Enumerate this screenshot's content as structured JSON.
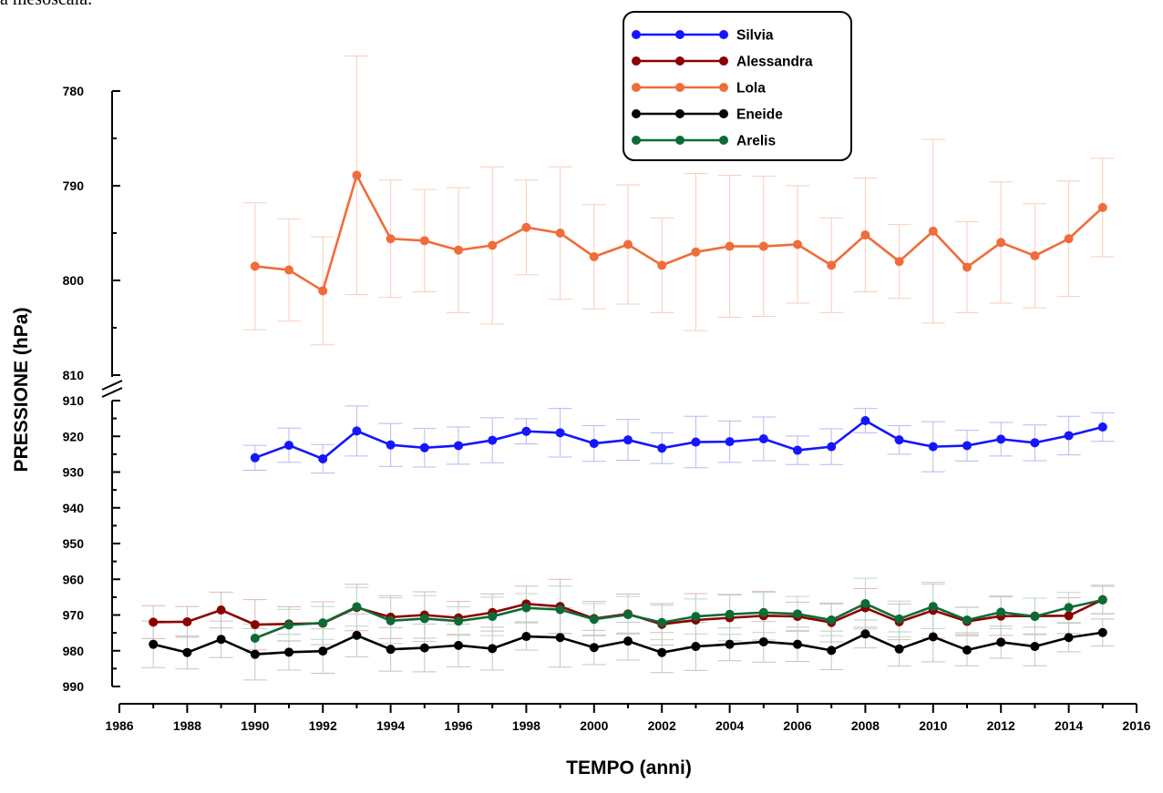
{
  "fragment_text": "a mesoscala.",
  "chart_data": {
    "type": "line",
    "title": "",
    "xlabel": "TEMPO (anni)",
    "ylabel": "PRESSIONE (hPa)",
    "xlim": [
      1986,
      2016
    ],
    "x_ticks": [
      "1986",
      "1988",
      "1990",
      "1992",
      "1994",
      "1996",
      "1998",
      "2000",
      "2002",
      "2004",
      "2006",
      "2008",
      "2010",
      "2012",
      "2014",
      "2016"
    ],
    "y_axis_break": true,
    "y_upper_segment": {
      "range": [
        780,
        810
      ],
      "inverted": true,
      "ticks": [
        "780",
        "790",
        "800",
        "810"
      ]
    },
    "y_lower_segment": {
      "range": [
        910,
        990
      ],
      "inverted": true,
      "ticks": [
        "910",
        "920",
        "930",
        "940",
        "950",
        "960",
        "970",
        "980",
        "990"
      ]
    },
    "legend_position": "top-center",
    "error_bars": true,
    "series": [
      {
        "name": "Silvia",
        "color": "#1515ff",
        "errcolor": "#b8b8f0",
        "segment": "lower",
        "x": [
          1990,
          1991,
          1992,
          1993,
          1994,
          1995,
          1996,
          1997,
          1998,
          1999,
          2000,
          2001,
          2002,
          2003,
          2004,
          2005,
          2006,
          2007,
          2008,
          2009,
          2010,
          2011,
          2012,
          2013,
          2014,
          2015
        ],
        "values": [
          926.0,
          922.5,
          926.3,
          918.5,
          922.4,
          923.2,
          922.6,
          921.1,
          918.6,
          919.0,
          922.0,
          921.0,
          923.3,
          921.6,
          921.5,
          920.7,
          923.9,
          922.9,
          915.6,
          921.0,
          922.9,
          922.6,
          920.8,
          921.8,
          919.8,
          917.4
        ],
        "err": [
          3.5,
          4.8,
          4.0,
          7.0,
          6.0,
          5.4,
          5.2,
          6.3,
          3.5,
          6.8,
          5.0,
          5.7,
          4.3,
          7.2,
          5.8,
          6.1,
          4.0,
          5.0,
          3.4,
          4.0,
          7.0,
          4.3,
          4.7,
          5.0,
          5.4,
          4.0
        ]
      },
      {
        "name": "Alessandra",
        "color": "#8b0000",
        "errcolor": "#d9b8b8",
        "segment": "lower",
        "x": [
          1987,
          1988,
          1989,
          1990,
          1991,
          1992,
          1993,
          1994,
          1995,
          1996,
          1997,
          1998,
          1999,
          2000,
          2001,
          2002,
          2003,
          2004,
          2005,
          2006,
          2007,
          2008,
          2009,
          2010,
          2011,
          2012,
          2013,
          2014,
          2015
        ],
        "values": [
          972.0,
          971.9,
          968.6,
          972.7,
          972.5,
          972.3,
          967.9,
          970.6,
          970.0,
          970.8,
          969.3,
          966.9,
          967.6,
          971.0,
          969.7,
          972.6,
          971.4,
          970.8,
          970.2,
          970.4,
          972.1,
          968.0,
          971.9,
          968.7,
          971.8,
          970.3,
          970.3,
          970.2,
          965.7
        ],
        "err": [
          4.6,
          4.3,
          5.0,
          7.0,
          4.8,
          6.0,
          6.5,
          6.0,
          6.5,
          4.6,
          5.2,
          5.0,
          7.6,
          4.8,
          5.6,
          5.8,
          7.4,
          6.4,
          6.8,
          4.0,
          5.4,
          5.4,
          5.0,
          7.8,
          4.0,
          5.4,
          5.0,
          5.0,
          4.0
        ]
      },
      {
        "name": "Lola",
        "color": "#f06c3a",
        "errcolor": "#f9cdbd",
        "segment": "upper",
        "x": [
          1990,
          1991,
          1992,
          1993,
          1994,
          1995,
          1996,
          1997,
          1998,
          1999,
          2000,
          2001,
          2002,
          2003,
          2004,
          2005,
          2006,
          2007,
          2008,
          2009,
          2010,
          2011,
          2012,
          2013,
          2014,
          2015
        ],
        "values": [
          798.5,
          798.9,
          801.1,
          788.9,
          795.6,
          795.8,
          796.8,
          796.3,
          794.4,
          795.0,
          797.5,
          796.2,
          798.4,
          797.0,
          796.4,
          796.4,
          796.2,
          798.4,
          795.2,
          798.0,
          794.8,
          798.6,
          796.0,
          797.4,
          795.6,
          792.3
        ],
        "err": [
          6.7,
          5.4,
          5.7,
          12.6,
          6.2,
          5.4,
          6.6,
          8.3,
          5.0,
          7.0,
          5.5,
          6.3,
          5.0,
          8.3,
          7.5,
          7.4,
          6.2,
          5.0,
          6.0,
          3.9,
          9.7,
          4.8,
          6.4,
          5.5,
          6.1,
          5.2
        ]
      },
      {
        "name": "Eneide",
        "color": "#000000",
        "errcolor": "#c4c4c4",
        "segment": "lower",
        "x": [
          1987,
          1988,
          1989,
          1990,
          1991,
          1992,
          1993,
          1994,
          1995,
          1996,
          1997,
          1998,
          1999,
          2000,
          2001,
          2002,
          2003,
          2004,
          2005,
          2006,
          2007,
          2008,
          2009,
          2010,
          2011,
          2012,
          2013,
          2014,
          2015
        ],
        "values": [
          978.2,
          980.5,
          976.8,
          981.0,
          980.4,
          980.1,
          975.7,
          979.6,
          979.2,
          978.5,
          979.4,
          976.0,
          976.3,
          979.1,
          977.3,
          980.5,
          978.8,
          978.2,
          977.5,
          978.2,
          979.9,
          975.3,
          979.5,
          976.1,
          979.8,
          977.6,
          978.8,
          976.3,
          974.9
        ],
        "err": [
          6.5,
          4.6,
          5.1,
          7.2,
          5.0,
          6.2,
          6.0,
          6.1,
          6.7,
          6.0,
          6.0,
          3.8,
          8.3,
          4.8,
          5.3,
          5.6,
          6.7,
          4.6,
          5.7,
          4.8,
          5.4,
          3.9,
          4.8,
          7.0,
          4.4,
          4.5,
          5.4,
          4.0,
          3.8
        ]
      },
      {
        "name": "Arelis",
        "color": "#0c6b35",
        "errcolor": "#bcd8c6",
        "segment": "lower",
        "x": [
          1990,
          1991,
          1992,
          1993,
          1994,
          1995,
          1996,
          1997,
          1998,
          1999,
          2000,
          2001,
          2002,
          2003,
          2004,
          2005,
          2006,
          2007,
          2008,
          2009,
          2010,
          2011,
          2012,
          2013,
          2014,
          2015
        ],
        "values": [
          976.5,
          972.8,
          972.2,
          967.7,
          971.6,
          971.0,
          971.7,
          970.4,
          968.0,
          968.5,
          971.2,
          969.9,
          972.1,
          970.4,
          969.8,
          969.3,
          969.7,
          971.4,
          966.8,
          971.1,
          967.6,
          971.4,
          969.2,
          970.4,
          967.9,
          965.8
        ],
        "err": [
          4.0,
          4.4,
          4.6,
          5.4,
          6.4,
          6.4,
          4.0,
          5.4,
          4.0,
          6.6,
          4.4,
          5.1,
          4.8,
          4.9,
          5.6,
          5.6,
          4.9,
          4.4,
          7.1,
          5.0,
          6.2,
          3.5,
          4.6,
          5.1,
          4.2,
          3.8
        ]
      }
    ]
  }
}
